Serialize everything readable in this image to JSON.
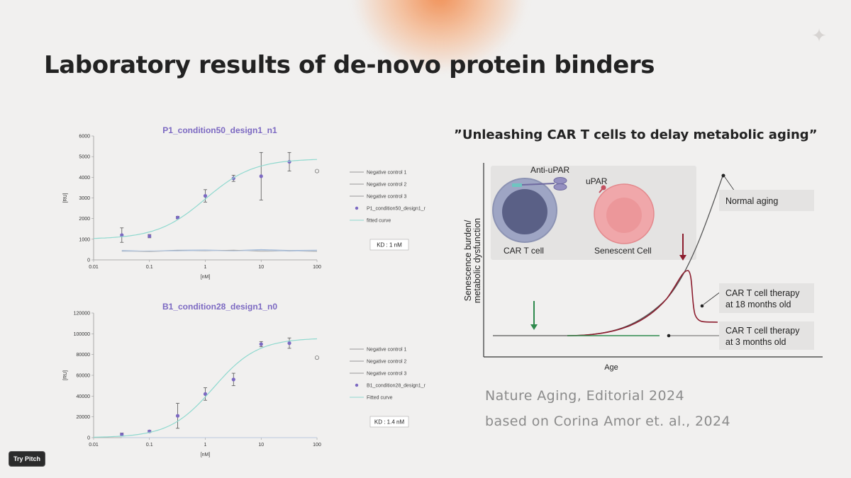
{
  "slide": {
    "title": "Laboratory results of de-novo protein binders",
    "quote": "”Unleashing CAR T cells to delay metabolic aging”",
    "citation_line1": "Nature Aging, Editorial 2024",
    "citation_line2": "based on Corina Amor et. al., 2024",
    "try_pitch_label": "Try Pitch",
    "colors": {
      "accent_purple": "#7c69c2",
      "fit_curve": "#8fd9cf",
      "background": "#f1f0ef"
    }
  },
  "figure": {
    "anti_upar": "Anti-uPAR",
    "upar": "uPAR",
    "car_t_cell": "CAR T cell",
    "senescent_cell": "Senescent Cell",
    "normal_aging": "Normal aging",
    "therapy18_line1": "CAR T cell therapy",
    "therapy18_line2": "at 18 months old",
    "therapy3_line1": "CAR T cell therapy",
    "therapy3_line2": "at 3 months old",
    "y_axis_line1": "Senescence burden/",
    "y_axis_line2": "metabolic dysfunction",
    "x_axis": "Age"
  },
  "chart_data": [
    {
      "type": "scatter",
      "title": "P1_condition50_design1_n1",
      "xlabel": "[nM]",
      "ylabel": "[RU]",
      "x_scale": "log",
      "xlim": [
        0.01,
        100
      ],
      "ylim": [
        0,
        6000
      ],
      "x_ticks": [
        "0.01",
        "0.1",
        "1",
        "10",
        "100"
      ],
      "y_ticks": [
        "0",
        "1000",
        "2000",
        "3000",
        "4000",
        "5000",
        "6000"
      ],
      "kd_label": "KD :   1 nM",
      "legend_position": "right",
      "legend": [
        "Negative control 1",
        "Negative control 2",
        "Negative control 3",
        "P1_condition50_design1_n1",
        "fitted curve"
      ],
      "series": [
        {
          "name": "P1_condition50_design1_n1",
          "x": [
            0.032,
            0.1,
            0.32,
            1,
            3.2,
            10,
            32
          ],
          "y": [
            1200,
            1150,
            2050,
            3100,
            3950,
            4050,
            4750
          ],
          "err": [
            350,
            80,
            60,
            300,
            150,
            1150,
            450
          ]
        },
        {
          "name": "Negative control 1",
          "x": [
            0.032,
            0.1,
            0.32,
            1,
            3.2,
            10,
            32,
            100
          ],
          "y": [
            460,
            420,
            470,
            480,
            450,
            500,
            460,
            470
          ]
        },
        {
          "name": "Negative control 2",
          "x": [
            0.032,
            0.1,
            0.32,
            1,
            3.2,
            10,
            32,
            100
          ],
          "y": [
            430,
            400,
            450,
            440,
            470,
            420,
            440,
            410
          ]
        },
        {
          "name": "Negative control 3",
          "x": [
            0.032,
            0.1,
            0.32,
            1,
            3.2,
            10,
            32,
            100
          ],
          "y": [
            410,
            440,
            430,
            460,
            430,
            470,
            420,
            450
          ]
        },
        {
          "name": "fitted curve",
          "fit": {
            "bottom": 1000,
            "top": 4900,
            "kd": 1.0,
            "hill": 1.0
          }
        }
      ],
      "outlier": {
        "x": 100,
        "y": 4300
      }
    },
    {
      "type": "scatter",
      "title": "B1_condition28_design1_n0",
      "xlabel": "[nM]",
      "ylabel": "[RU]",
      "x_scale": "log",
      "xlim": [
        0.01,
        100
      ],
      "ylim": [
        0,
        120000
      ],
      "x_ticks": [
        "0.01",
        "0.1",
        "1",
        "10",
        "100"
      ],
      "y_ticks": [
        "0",
        "20000",
        "40000",
        "60000",
        "80000",
        "100000",
        "120000"
      ],
      "kd_label": "KD :  1.4 nM",
      "legend_position": "right",
      "legend": [
        "Negative control 1",
        "Negative control 2",
        "Negative control 3",
        "B1_condition28_design1_n0",
        "Fitted curve"
      ],
      "series": [
        {
          "name": "B1_condition28_design1_n0",
          "x": [
            0.032,
            0.1,
            0.32,
            1,
            3.2,
            10,
            32
          ],
          "y": [
            3000,
            6000,
            21000,
            42000,
            56000,
            90000,
            91000
          ],
          "err": [
            1500,
            1000,
            12000,
            6000,
            6000,
            2500,
            5000
          ]
        },
        {
          "name": "Negative control 1",
          "x": [
            0.032,
            0.1,
            0.32,
            1,
            3.2,
            10,
            32,
            100
          ],
          "y": [
            0,
            0,
            0,
            0,
            0,
            0,
            0,
            0
          ]
        },
        {
          "name": "Negative control 2",
          "x": [
            0.032,
            0.1,
            0.32,
            1,
            3.2,
            10,
            32,
            100
          ],
          "y": [
            0,
            0,
            0,
            0,
            0,
            0,
            0,
            0
          ]
        },
        {
          "name": "Negative control 3",
          "x": [
            0.032,
            0.1,
            0.32,
            1,
            3.2,
            10,
            32,
            100
          ],
          "y": [
            0,
            0,
            0,
            0,
            0,
            0,
            0,
            0
          ]
        },
        {
          "name": "Fitted curve",
          "fit": {
            "bottom": 0,
            "top": 96000,
            "kd": 1.4,
            "hill": 1.1
          }
        }
      ],
      "outlier": {
        "x": 100,
        "y": 77000
      }
    }
  ]
}
